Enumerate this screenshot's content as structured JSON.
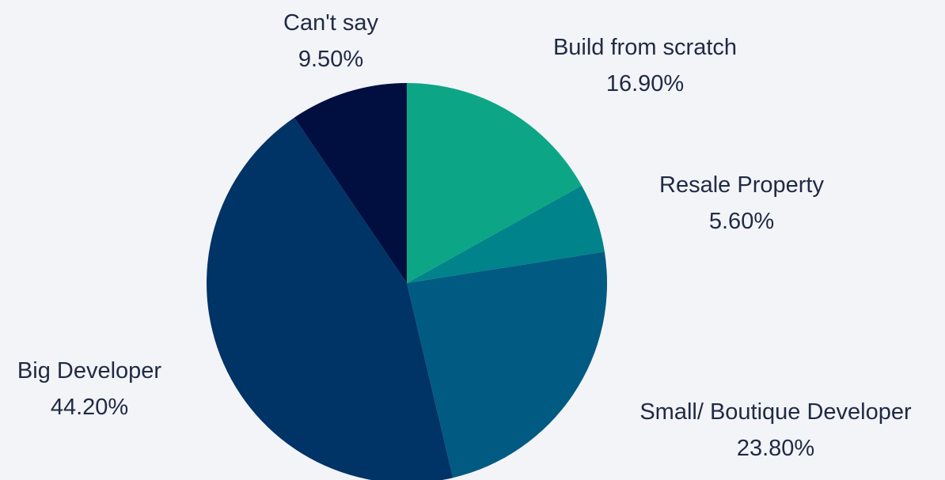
{
  "chart_data": {
    "type": "pie",
    "title": "",
    "slices": [
      {
        "label": "Build from scratch",
        "value_label": "16.90%",
        "value": 16.9,
        "color": "#0ca686"
      },
      {
        "label": "Resale Property",
        "value_label": "5.60%",
        "value": 5.6,
        "color": "#00838a"
      },
      {
        "label": "Small/ Boutique Developer",
        "value_label": "23.80%",
        "value": 23.8,
        "color": "#005a82"
      },
      {
        "label": "Big Developer",
        "value_label": "44.20%",
        "value": 44.2,
        "color": "#003366"
      },
      {
        "label": "Can't say",
        "value_label": "9.50%",
        "value": 9.5,
        "color": "#000f40"
      }
    ],
    "start_angle": "12 o'clock",
    "direction": "clockwise",
    "legend": "none",
    "background": "#f3f4f8"
  }
}
